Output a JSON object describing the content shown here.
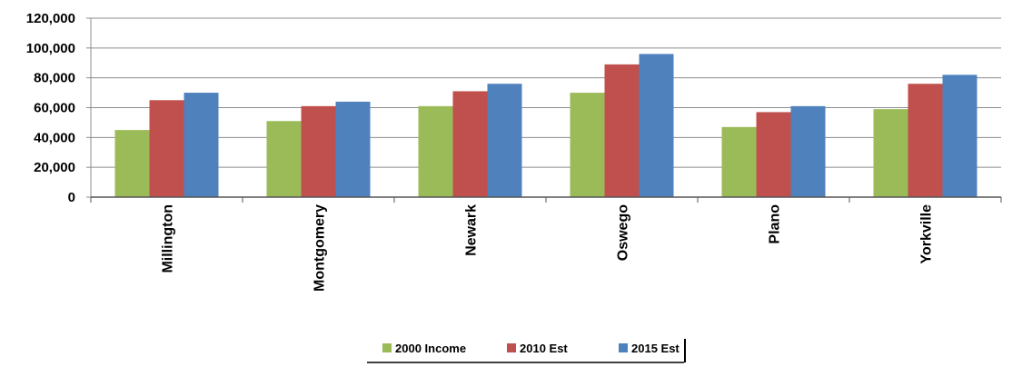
{
  "chart_data": {
    "type": "bar",
    "title": "",
    "xlabel": "",
    "ylabel": "",
    "categories": [
      "Millington",
      "Montgomery",
      "Newark",
      "Oswego",
      "Plano",
      "Yorkville"
    ],
    "series": [
      {
        "name": "2000 Income",
        "color": "#9bbb59",
        "values": [
          45000,
          51000,
          61000,
          70000,
          47000,
          59000
        ]
      },
      {
        "name": "2010 Est",
        "color": "#c0504d",
        "values": [
          65000,
          61000,
          71000,
          89000,
          57000,
          76000
        ]
      },
      {
        "name": "2015 Est",
        "color": "#4f81bd",
        "values": [
          70000,
          64000,
          76000,
          96000,
          61000,
          82000
        ]
      }
    ],
    "ylim": [
      0,
      120000
    ],
    "yticks": [
      0,
      20000,
      40000,
      60000,
      80000,
      100000,
      120000
    ],
    "ytick_labels": [
      "0",
      "20,000",
      "40,000",
      "60,000",
      "80,000",
      "100,000",
      "120,000"
    ],
    "gridlines": true,
    "legend_position": "bottom"
  }
}
